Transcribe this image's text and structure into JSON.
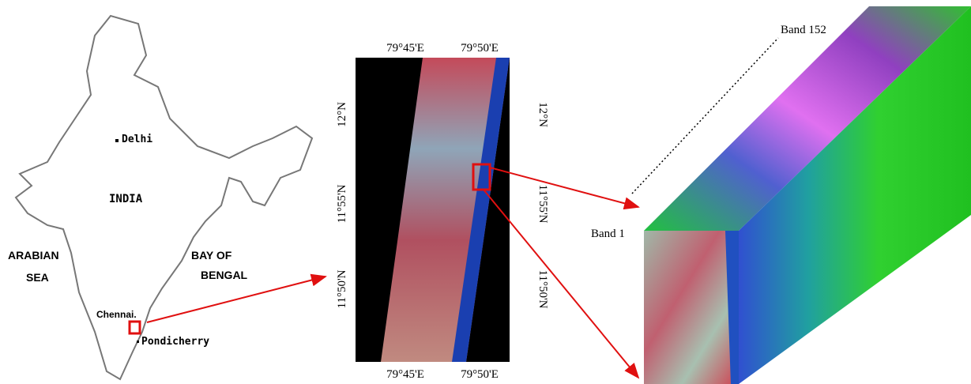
{
  "map": {
    "delhi": "Delhi",
    "india": "INDIA",
    "arabian_sea": [
      "ARABIAN",
      "SEA"
    ],
    "bay_of_bengal": [
      "BAY OF",
      "BENGAL"
    ],
    "chennai": "Chennai.",
    "pondicherry": "Pondicherry"
  },
  "image": {
    "top_ticks": [
      "79°45'E",
      "79°50'E"
    ],
    "bottom_ticks": [
      "79°45'E",
      "79°50'E"
    ],
    "left_ticks": [
      "12°N",
      "11°55'N",
      "11°50'N"
    ],
    "right_ticks": [
      "12°N",
      "11°55'N",
      "11°50'N"
    ]
  },
  "cube": {
    "band_last": "Band 152",
    "band_first": "Band 1"
  }
}
